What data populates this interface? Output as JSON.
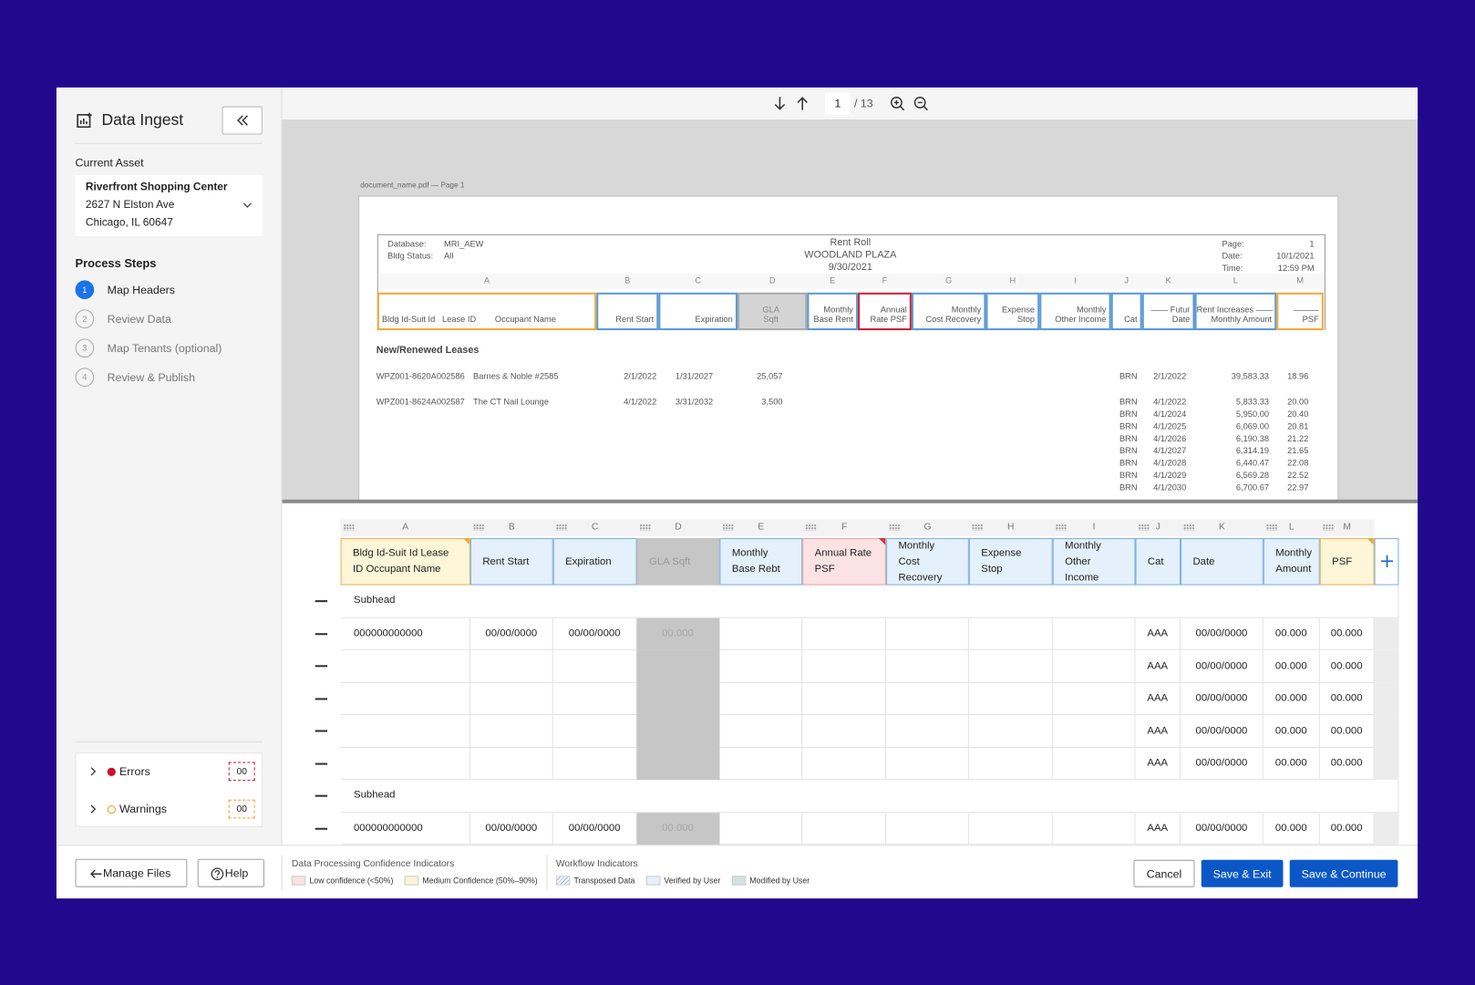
{
  "sidebar": {
    "title": "Data Ingest",
    "current_asset": {
      "label": "Current Asset",
      "name": "Riverfront Shopping Center",
      "address_line1": "2627 N Elston Ave",
      "address_line2": "Chicago, IL 60647"
    },
    "process_steps": {
      "label": "Process Steps",
      "steps": [
        {
          "number": "1",
          "label": "Map Headers",
          "active": true
        },
        {
          "number": "2",
          "label": "Review Data",
          "active": false
        },
        {
          "number": "3",
          "label": "Map Tenants (optional)",
          "active": false
        },
        {
          "number": "4",
          "label": "Review & Publish",
          "active": false
        }
      ]
    },
    "issues": [
      {
        "label": "Errors",
        "count": "00",
        "color": "#d0102b"
      },
      {
        "label": "Warnings",
        "count": "00",
        "color": "#f0a020"
      }
    ]
  },
  "viewer": {
    "page": "1",
    "page_total": "/ 13",
    "document_caption": "document_name.pdf — Page 1",
    "report": {
      "meta_left": [
        [
          "Database:",
          "MRI_AEW"
        ],
        [
          "Bldg Status:",
          "All"
        ]
      ],
      "title_lines": [
        "Rent Roll",
        "WOODLAND PLAZA",
        "9/30/2021"
      ],
      "meta_right": [
        [
          "Page:",
          "1"
        ],
        [
          "Date:",
          "10/1/2021"
        ],
        [
          "Time:",
          "12:59 PM"
        ]
      ],
      "columns": [
        {
          "letter": "A",
          "lines": [
            "Bldg Id-Suit Id   Lease ID        Occupant Name"
          ],
          "state": "medium"
        },
        {
          "letter": "B",
          "lines": [
            "Rent Start"
          ],
          "state": "mapped"
        },
        {
          "letter": "C",
          "lines": [
            "Expiration"
          ],
          "state": "mapped"
        },
        {
          "letter": "D",
          "lines": [
            "GLA",
            "Sqft"
          ],
          "state": "unmapped"
        },
        {
          "letter": "E",
          "lines": [
            "Monthly",
            "Base Rent"
          ],
          "state": "mapped"
        },
        {
          "letter": "F",
          "lines": [
            "Annual",
            "Rate PSF"
          ],
          "state": "low"
        },
        {
          "letter": "G",
          "lines": [
            "Monthly",
            "Cost Recovery"
          ],
          "state": "mapped"
        },
        {
          "letter": "H",
          "lines": [
            "Expense",
            "Stop"
          ],
          "state": "mapped"
        },
        {
          "letter": "I",
          "lines": [
            "Monthly",
            "Other Income"
          ],
          "state": "mapped"
        },
        {
          "letter": "J",
          "lines": [
            "Cat"
          ],
          "state": "mapped"
        },
        {
          "letter": "K",
          "lines": [
            "—— Futur",
            "Date"
          ],
          "state": "mapped"
        },
        {
          "letter": "L",
          "lines": [
            "Rent Increases ——",
            "Monthly Amount"
          ],
          "state": "mapped"
        },
        {
          "letter": "M",
          "lines": [
            "———",
            "PSF"
          ],
          "state": "medium"
        }
      ],
      "section": "New/Renewed Leases",
      "leases": [
        {
          "id": "WPZ001-8620A002586",
          "occupant": "Barnes & Noble #2585",
          "rent_start": "2/1/2022",
          "expiration": "1/31/2027",
          "gla": "25,057",
          "increases": [
            [
              "BRN",
              "2/1/2022",
              "39,583.33",
              "18.96"
            ]
          ]
        },
        {
          "id": "WPZ001-8624A002587",
          "occupant": "The CT Nail Lounge",
          "rent_start": "4/1/2022",
          "expiration": "3/31/2032",
          "gla": "3,500",
          "increases": [
            [
              "BRN",
              "4/1/2022",
              "5,833.33",
              "20.00"
            ],
            [
              "BRN",
              "4/1/2024",
              "5,950.00",
              "20.40"
            ],
            [
              "BRN",
              "4/1/2025",
              "6,069.00",
              "20.81"
            ],
            [
              "BRN",
              "4/1/2026",
              "6,190.38",
              "21.22"
            ],
            [
              "BRN",
              "4/1/2027",
              "6,314.19",
              "21.65"
            ],
            [
              "BRN",
              "4/1/2028",
              "6,440.47",
              "22.08"
            ],
            [
              "BRN",
              "4/1/2029",
              "6,569.28",
              "22.52"
            ],
            [
              "BRN",
              "4/1/2030",
              "6,700.67",
              "22.97"
            ]
          ]
        }
      ]
    }
  },
  "grid": {
    "columns": [
      {
        "letter": "A",
        "header": "Bldg Id-Suit Id Lease ID Occupant Name",
        "state": "medium"
      },
      {
        "letter": "B",
        "header": "Rent Start",
        "state": "mapped"
      },
      {
        "letter": "C",
        "header": "Expiration",
        "state": "mapped"
      },
      {
        "letter": "D",
        "header": "GLA Sqft",
        "state": "unmapped"
      },
      {
        "letter": "E",
        "header": "Monthly Base Rebt",
        "state": "mapped"
      },
      {
        "letter": "F",
        "header": "Annual Rate PSF",
        "state": "low"
      },
      {
        "letter": "G",
        "header": "Monthly Cost Recovery",
        "state": "mapped"
      },
      {
        "letter": "H",
        "header": "Expense Stop",
        "state": "mapped"
      },
      {
        "letter": "I",
        "header": "Monthly Other Income",
        "state": "mapped"
      },
      {
        "letter": "J",
        "header": "Cat",
        "state": "mapped"
      },
      {
        "letter": "K",
        "header": "Date",
        "state": "mapped"
      },
      {
        "letter": "L",
        "header": "Monthly Amount",
        "state": "mapped"
      },
      {
        "letter": "M",
        "header": "PSF",
        "state": "medium"
      }
    ],
    "rows": [
      {
        "subhead": "Subhead"
      },
      {
        "cells": [
          "000000000000",
          "00/00/0000",
          "00/00/0000",
          "00.000",
          null,
          null,
          null,
          null,
          null,
          "AAA",
          "00/00/0000",
          "00.000",
          "00.000"
        ]
      },
      {
        "cells": [
          null,
          null,
          null,
          null,
          null,
          null,
          null,
          null,
          null,
          "AAA",
          "00/00/0000",
          "00.000",
          "00.000"
        ]
      },
      {
        "cells": [
          null,
          null,
          null,
          null,
          null,
          null,
          null,
          null,
          null,
          "AAA",
          "00/00/0000",
          "00.000",
          "00.000"
        ]
      },
      {
        "cells": [
          null,
          null,
          null,
          null,
          null,
          null,
          null,
          null,
          null,
          "AAA",
          "00/00/0000",
          "00.000",
          "00.000"
        ]
      },
      {
        "cells": [
          null,
          null,
          null,
          null,
          null,
          null,
          null,
          null,
          null,
          "AAA",
          "00/00/0000",
          "00.000",
          "00.000"
        ]
      },
      {
        "subhead": "Subhead"
      },
      {
        "cells": [
          "000000000000",
          "00/00/0000",
          "00/00/0000",
          "00.000",
          null,
          null,
          null,
          null,
          null,
          "AAA",
          "00/00/0000",
          "00.000",
          "00.000"
        ]
      }
    ]
  },
  "footer": {
    "buttons_left": [
      "Manage Files",
      "Help"
    ],
    "confidence": {
      "label": "Data Processing Confidence Indicators",
      "items": [
        {
          "label": "Low confidence (<50%)",
          "color": "#fbe1e1"
        },
        {
          "label": "Medium Confidence (50%–90%)",
          "color": "#fdf5d6"
        }
      ]
    },
    "workflow": {
      "label": "Workflow Indicators",
      "items": [
        {
          "label": "Transposed Data",
          "pattern": "hatch"
        },
        {
          "label": "Verified by User",
          "color": "#e8f0fb"
        },
        {
          "label": "Modified by User",
          "color": "#d3e1e2"
        }
      ]
    },
    "buttons_right": [
      "Cancel",
      "Save & Exit",
      "Save & Continue"
    ]
  }
}
